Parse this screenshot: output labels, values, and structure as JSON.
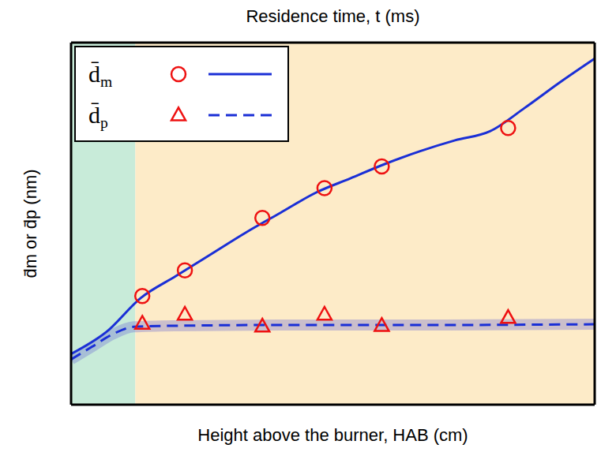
{
  "chart_data": {
    "type": "line",
    "top_axis_label": "Residence time, t (ms)",
    "x_label": "Height above the burner, HAB (cm)",
    "y_label": "d̄m or d̄p (nm)",
    "xlim": [
      0,
      7.5
    ],
    "xticks": [
      1,
      2,
      3,
      4,
      5,
      6,
      7
    ],
    "ylim": [
      0,
      10
    ],
    "yticks": [
      2,
      4,
      6,
      8
    ],
    "tick_labels": false,
    "legend": "upper left",
    "regions": [
      {
        "x": [
          0,
          0.92
        ],
        "color": "#c8ebd9"
      },
      {
        "x": [
          0.92,
          7.5
        ],
        "color": "#fdebc8"
      }
    ],
    "series": [
      {
        "name": "d̄m",
        "type": "scatter",
        "marker": "circle",
        "color": "#ee1111",
        "x": [
          1.02,
          1.63,
          2.74,
          3.63,
          4.45,
          6.26
        ],
        "values": [
          3.0,
          3.71,
          5.16,
          5.98,
          6.58,
          7.64
        ]
      },
      {
        "name": "d̄m",
        "type": "line",
        "line_style": "solid",
        "color": "#1a2fd6",
        "x": [
          0,
          0.5,
          1,
          1.5,
          2,
          2.5,
          3,
          3.5,
          4,
          4.5,
          5,
          5.5,
          6,
          6.5,
          7,
          7.5
        ],
        "values": [
          1.4,
          2.0,
          2.95,
          3.55,
          4.15,
          4.75,
          5.3,
          5.85,
          6.25,
          6.65,
          7.0,
          7.3,
          7.55,
          8.2,
          8.9,
          9.56
        ]
      },
      {
        "name": "d̄p",
        "type": "scatter",
        "marker": "triangle",
        "color": "#ee1111",
        "x": [
          1.02,
          1.63,
          2.74,
          3.63,
          4.45,
          6.26
        ],
        "values": [
          2.24,
          2.49,
          2.16,
          2.49,
          2.18,
          2.4
        ]
      },
      {
        "name": "d̄p",
        "type": "line",
        "line_style": "dashed",
        "color": "#1a2fd6",
        "x": [
          0,
          0.3,
          0.6,
          0.9,
          1.5,
          3,
          5,
          7.5
        ],
        "values": [
          1.25,
          1.6,
          1.95,
          2.15,
          2.18,
          2.2,
          2.2,
          2.22
        ]
      }
    ]
  }
}
